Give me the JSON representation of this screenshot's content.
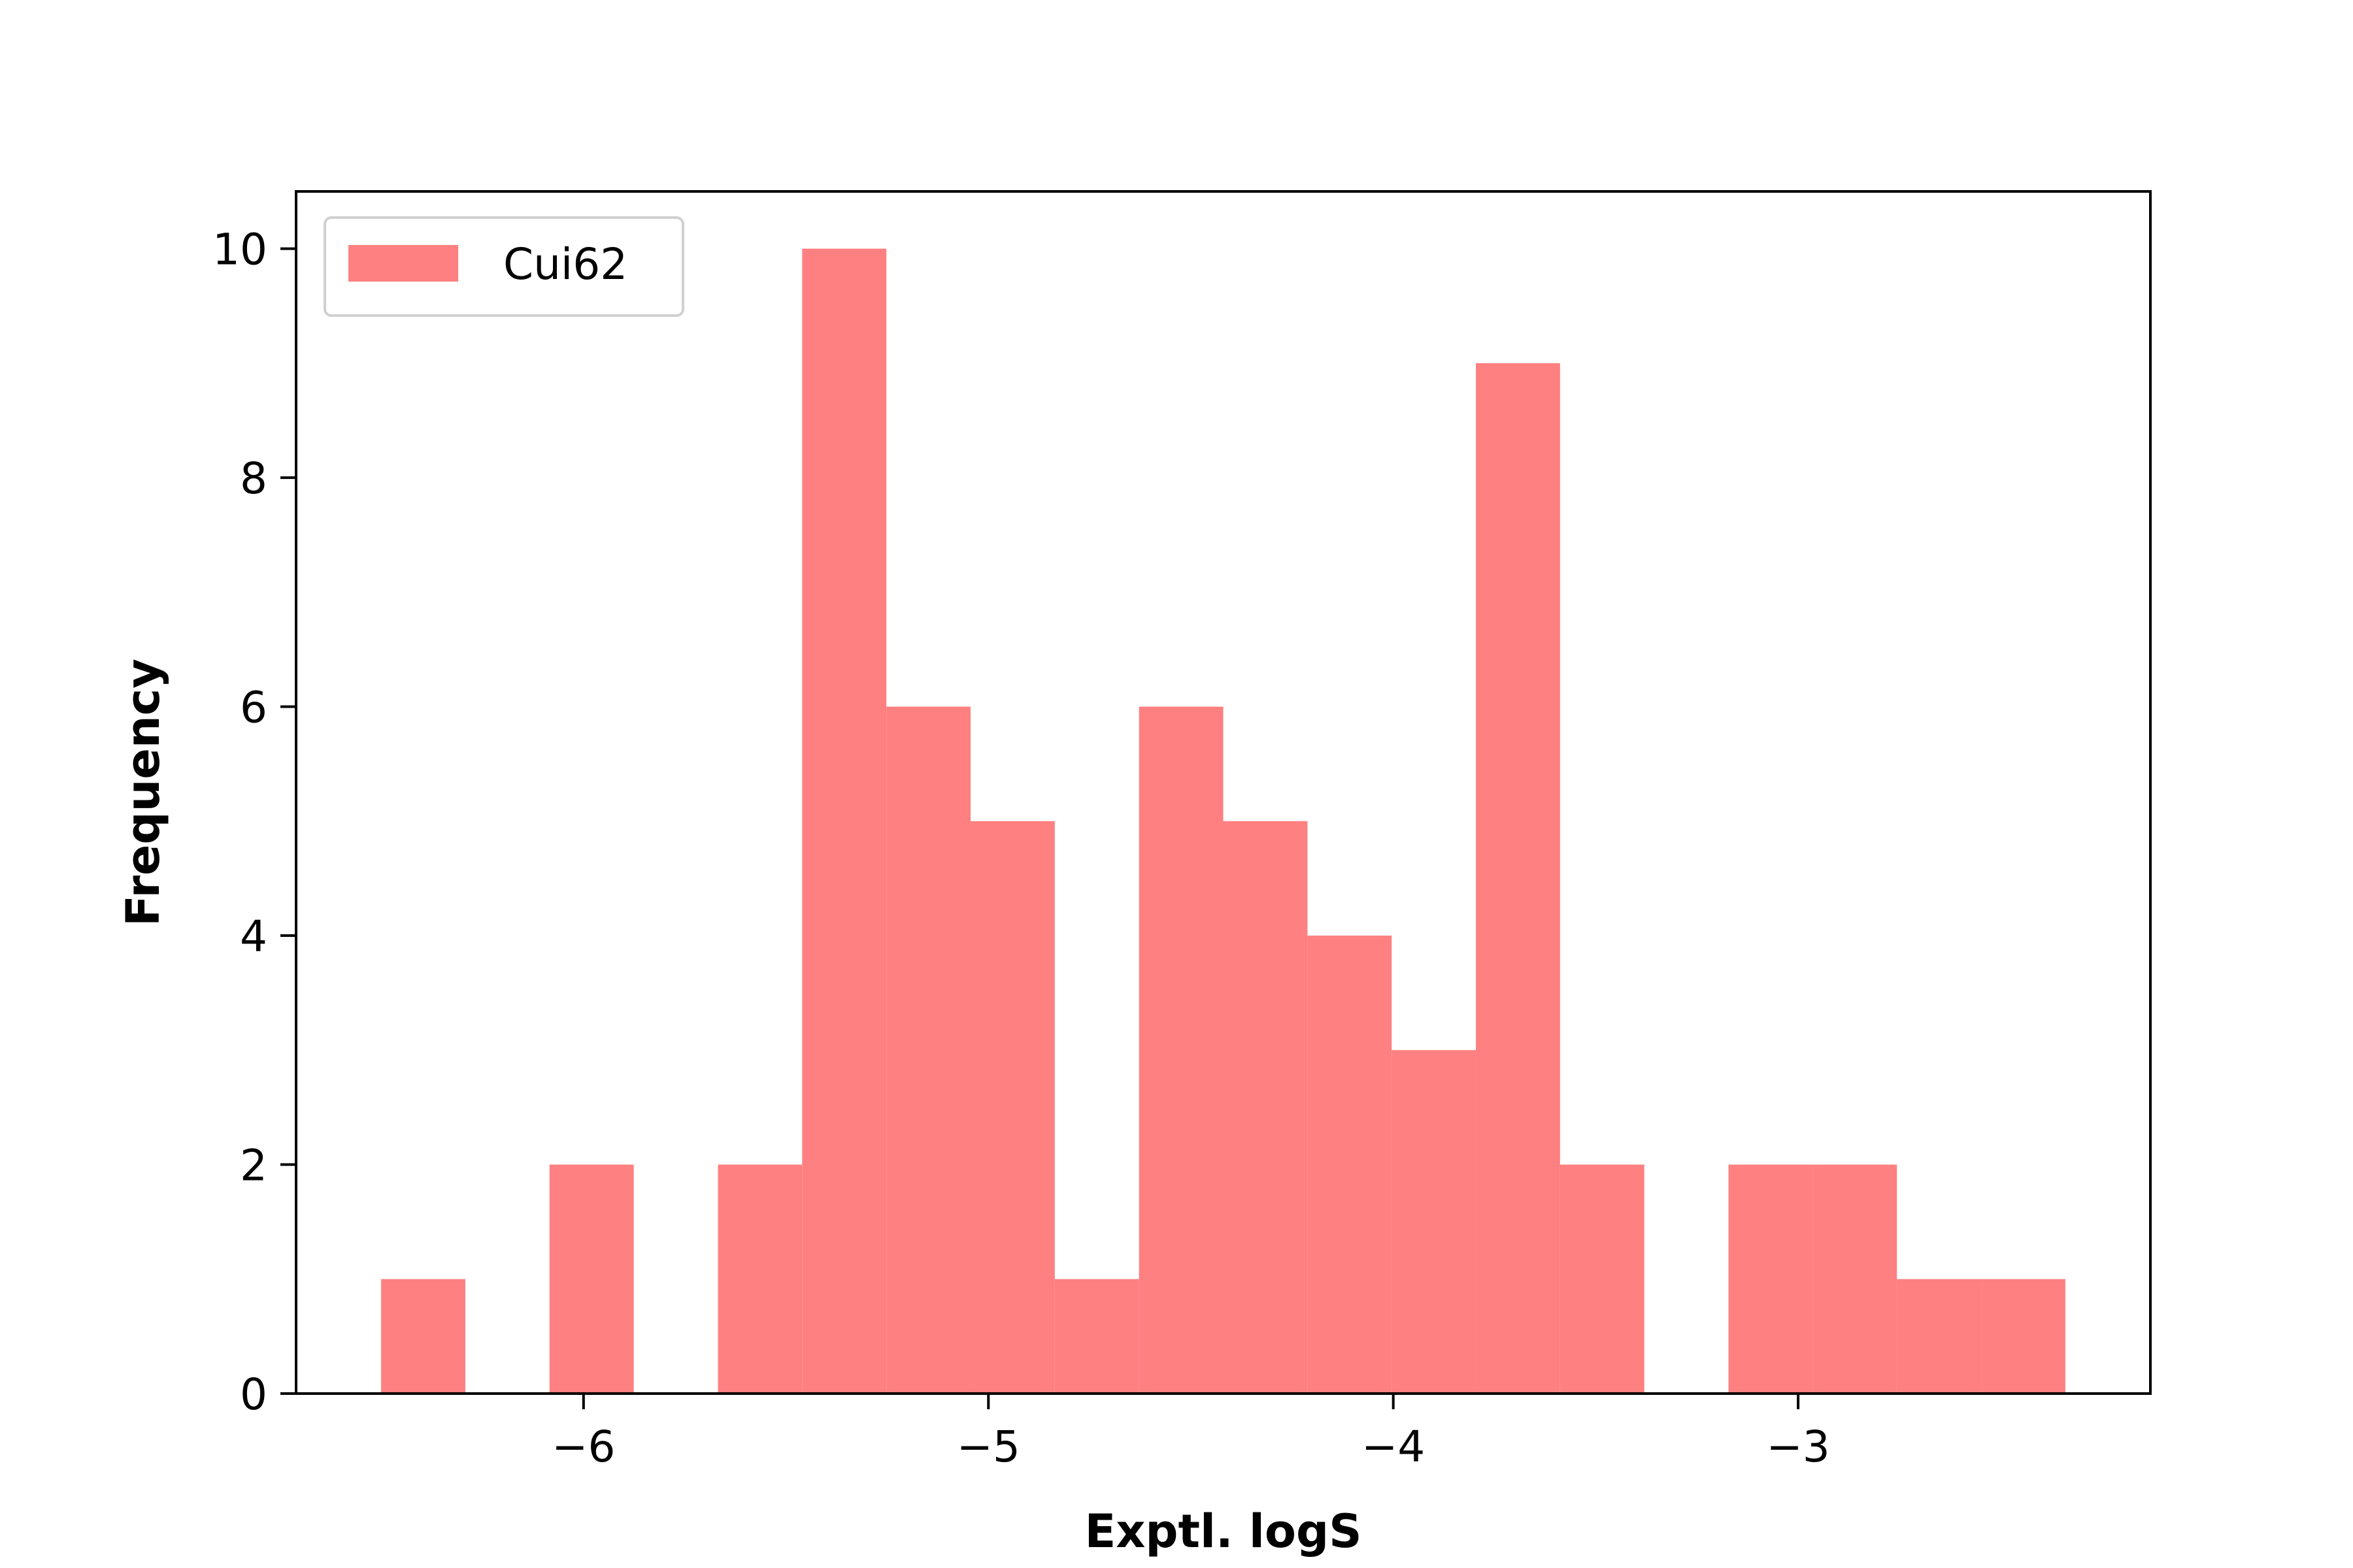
{
  "chart_data": {
    "type": "bar",
    "subtype": "histogram",
    "title": "",
    "xlabel": "Exptl. logS",
    "ylabel": "Frequency",
    "xlim": [
      -6.71,
      -2.13
    ],
    "ylim": [
      0,
      10.5
    ],
    "xticks": [
      -6,
      -5,
      -4,
      -3
    ],
    "yticks": [
      0,
      2,
      4,
      6,
      8,
      10
    ],
    "bin_edges": [
      -6.5,
      -6.292,
      -6.084,
      -5.876,
      -5.668,
      -5.46,
      -5.252,
      -5.044,
      -4.836,
      -4.628,
      -4.42,
      -4.212,
      -4.004,
      -3.796,
      -3.588,
      -3.38,
      -3.172,
      -2.964,
      -2.756,
      -2.548,
      -2.34
    ],
    "series": [
      {
        "name": "Cui62",
        "values": [
          1,
          0,
          2,
          0,
          2,
          10,
          6,
          5,
          1,
          6,
          5,
          4,
          3,
          9,
          2,
          0,
          2,
          2,
          1,
          1
        ],
        "color": "#ff8080"
      }
    ],
    "legend_position": "top-left",
    "grid": false
  }
}
